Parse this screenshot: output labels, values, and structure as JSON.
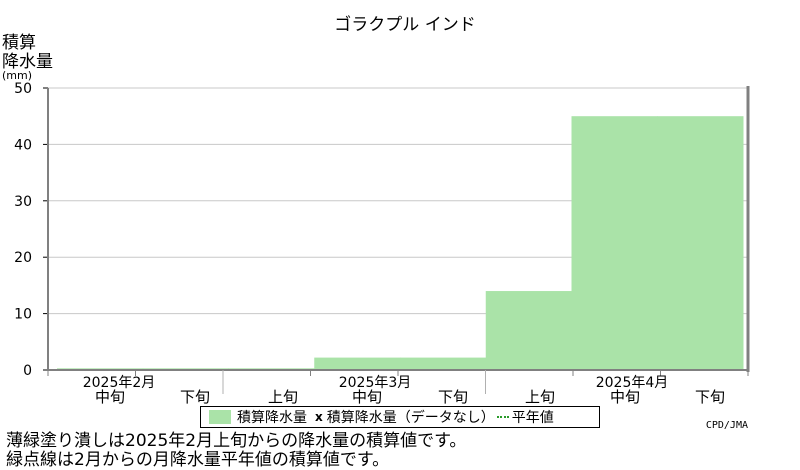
{
  "chart_data": {
    "type": "bar",
    "title": "ゴラクプル インド",
    "ylabel_lines": [
      "積算",
      "降水量",
      "(mm)"
    ],
    "ylim": [
      0,
      50
    ],
    "yticks": [
      0,
      10,
      20,
      30,
      40,
      50
    ],
    "grid": true,
    "dekad_labels": [
      "中旬",
      "下旬",
      "上旬",
      "中旬",
      "下旬",
      "上旬",
      "中旬",
      "下旬"
    ],
    "month_labels": [
      "2025年2月",
      "2025年3月",
      "2025年4月"
    ],
    "series": [
      {
        "name": "積算降水量",
        "color": "#aae3a8",
        "values": [
          0.3,
          0.3,
          0.3,
          2.2,
          2.2,
          14.0,
          45.0,
          45.0
        ]
      }
    ]
  },
  "legend": {
    "bar_label": "積算降水量",
    "marker": "x",
    "nodata_label": "積算降水量（データなし）",
    "dotted_label": "平年値"
  },
  "credit": "CPD/JMA",
  "notes": [
    "薄緑塗り潰しは2025年2月上旬からの降水量の積算値です。",
    "緑点線は2月からの月降水量平年値の積算値です。"
  ]
}
